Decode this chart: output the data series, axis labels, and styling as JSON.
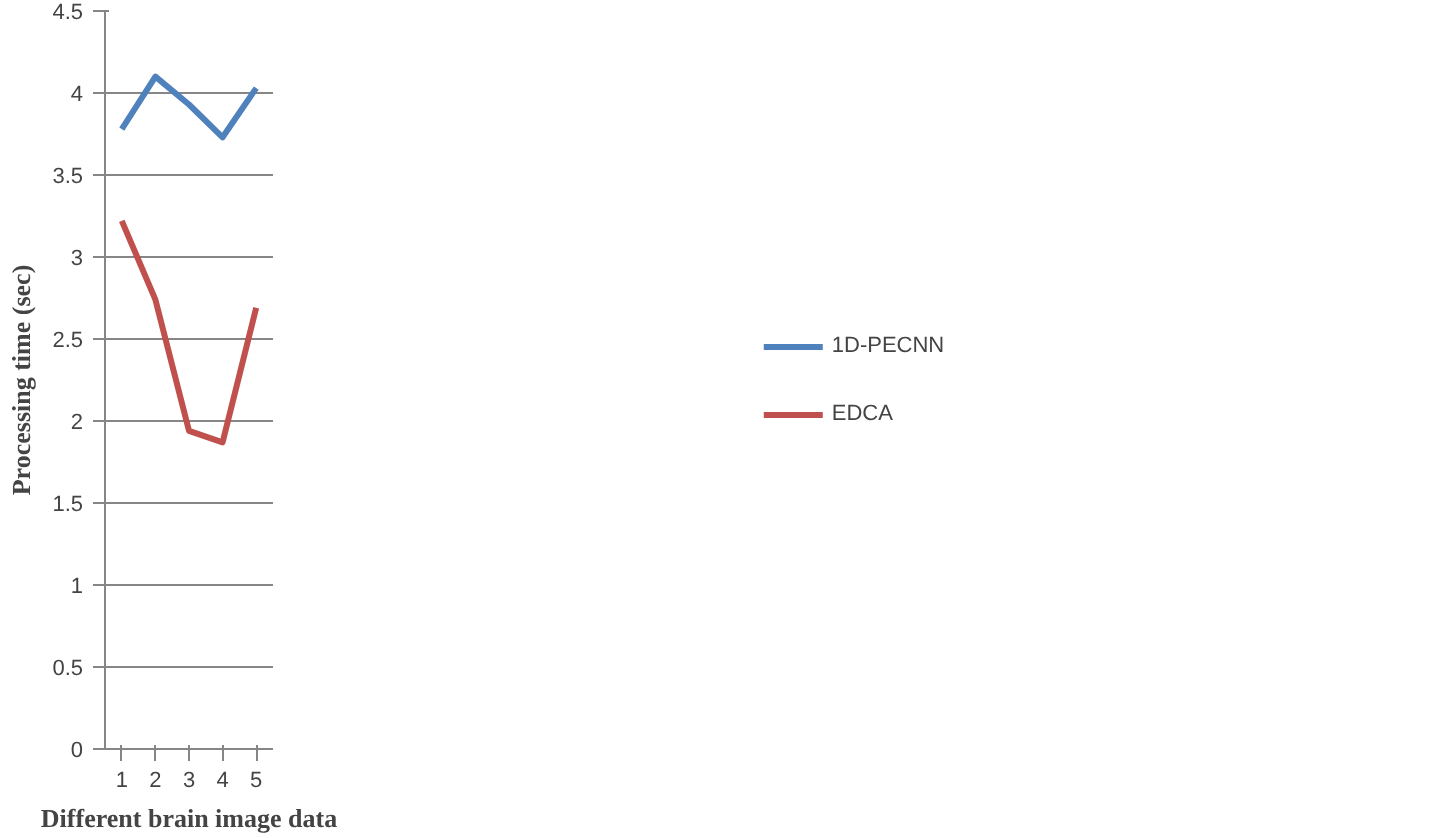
{
  "chart_data": {
    "type": "line",
    "xlabel": "Different brain image data",
    "ylabel": "Processing time (sec)",
    "categories": [
      "1",
      "2",
      "3",
      "4",
      "5"
    ],
    "series": [
      {
        "name": "1D-PECNN",
        "color": "#4f81bd",
        "values": [
          3.78,
          4.1,
          3.93,
          3.73,
          4.03
        ]
      },
      {
        "name": "EDCA",
        "color": "#c0504d",
        "values": [
          3.22,
          2.74,
          1.94,
          1.87,
          2.69
        ]
      }
    ],
    "ylim": [
      0,
      4.5
    ],
    "yticks": [
      0,
      0.5,
      1,
      1.5,
      2,
      2.5,
      3,
      3.5,
      4,
      4.5
    ],
    "grid": "y",
    "legend": "right",
    "marker": "none",
    "line_style": "solid"
  }
}
